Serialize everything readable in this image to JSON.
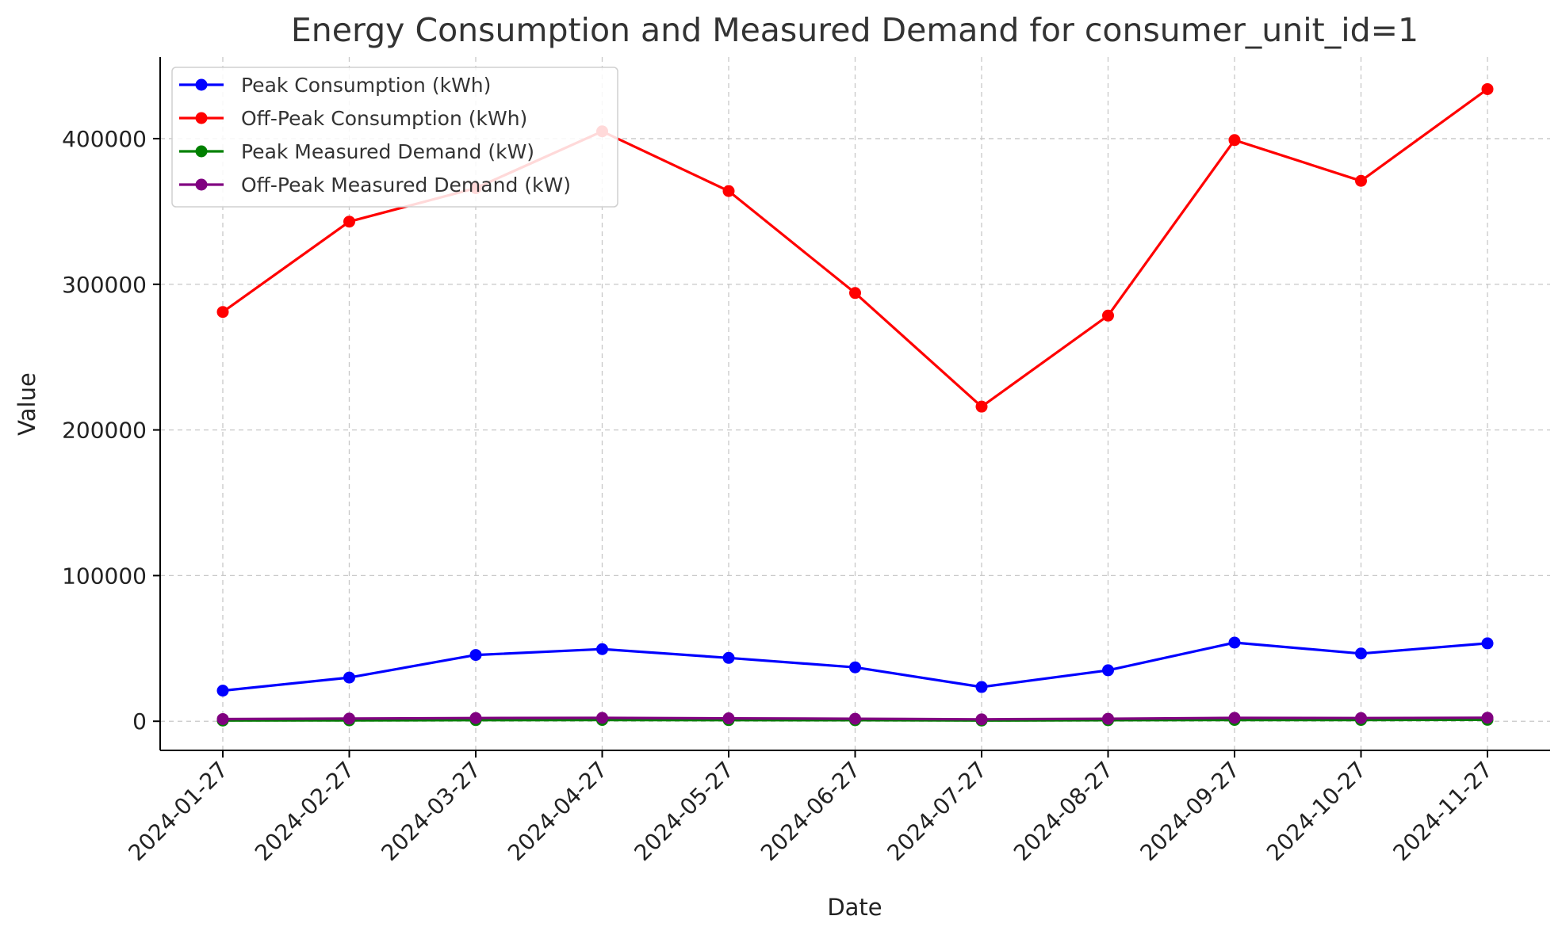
{
  "chart_data": {
    "type": "line",
    "title": "Energy Consumption and Measured Demand for consumer_unit_id=1",
    "xlabel": "Date",
    "ylabel": "Value",
    "categories": [
      "2024-01-27",
      "2024-02-27",
      "2024-03-27",
      "2024-04-27",
      "2024-05-27",
      "2024-06-27",
      "2024-07-27",
      "2024-08-27",
      "2024-09-27",
      "2024-10-27",
      "2024-11-27"
    ],
    "yticks": [
      0,
      100000,
      200000,
      300000,
      400000
    ],
    "ylim": [
      -20000,
      456000
    ],
    "grid": true,
    "legend_position": "upper-left",
    "series": [
      {
        "name": "Peak Consumption (kWh)",
        "color": "#0000ff",
        "values": [
          21000,
          30000,
          45500,
          49500,
          43500,
          37000,
          23500,
          35000,
          54000,
          46500,
          53500
        ]
      },
      {
        "name": "Off-Peak Consumption (kWh)",
        "color": "#ff0000",
        "values": [
          281000,
          343000,
          366000,
          405000,
          364000,
          294000,
          216000,
          278500,
          399000,
          371000,
          434000
        ]
      },
      {
        "name": "Peak Measured Demand (kW)",
        "color": "#008000",
        "values": [
          500,
          600,
          800,
          900,
          800,
          700,
          500,
          700,
          900,
          900,
          1000
        ]
      },
      {
        "name": "Off-Peak Measured Demand (kW)",
        "color": "#800080",
        "values": [
          1500,
          1800,
          2200,
          2300,
          2000,
          1700,
          1300,
          1700,
          2300,
          2200,
          2400
        ]
      }
    ]
  }
}
